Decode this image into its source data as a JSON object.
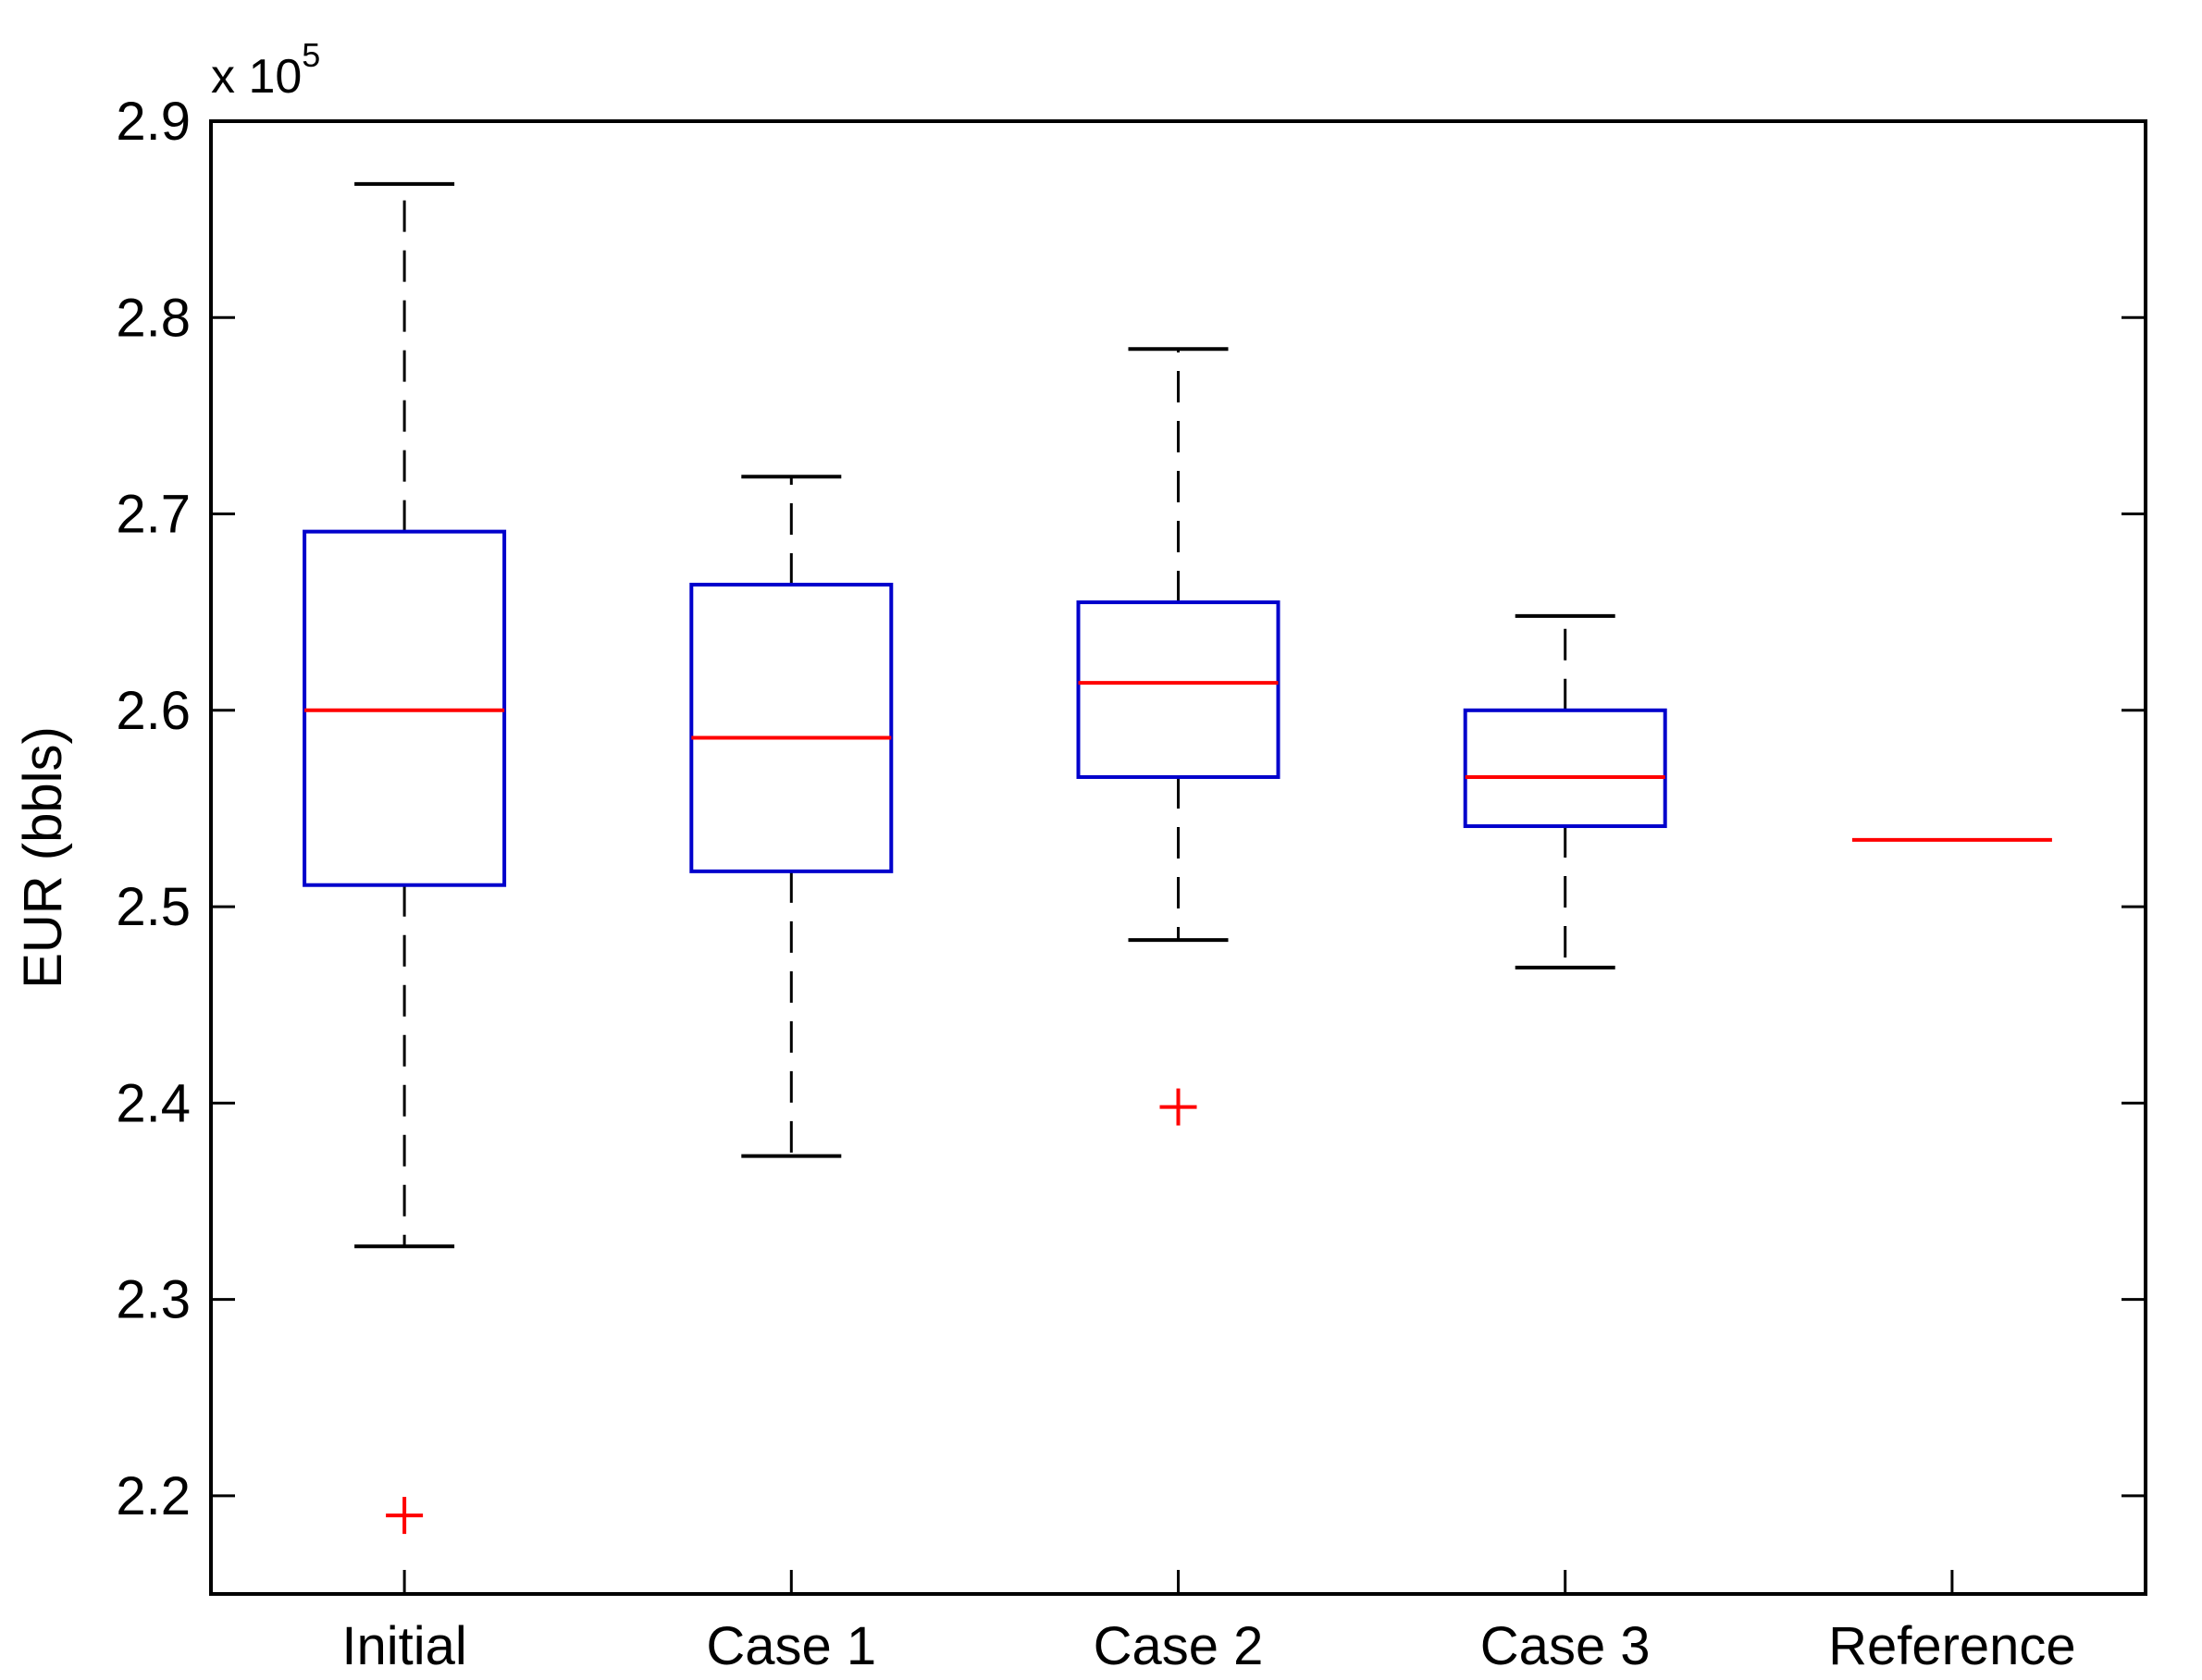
{
  "chart_data": {
    "type": "boxplot",
    "title": "",
    "xlabel": "",
    "ylabel": "EUR (bbls)",
    "exponent_label": "x 10",
    "exponent_power": "5",
    "ylim": [
      2.15,
      2.9
    ],
    "yticks": [
      2.2,
      2.3,
      2.4,
      2.5,
      2.6,
      2.7,
      2.8,
      2.9
    ],
    "ytick_labels": [
      "2.2",
      "2.3",
      "2.4",
      "2.5",
      "2.6",
      "2.7",
      "2.8",
      "2.9"
    ],
    "categories": [
      "Initial",
      "Case 1",
      "Case 2",
      "Case 3",
      "Reference"
    ],
    "boxes": [
      {
        "whisker_low": 2.327,
        "q1": 2.511,
        "median": 2.6,
        "q3": 2.691,
        "whisker_high": 2.868,
        "outliers": [
          2.19
        ]
      },
      {
        "whisker_low": 2.373,
        "q1": 2.518,
        "median": 2.586,
        "q3": 2.664,
        "whisker_high": 2.719,
        "outliers": []
      },
      {
        "whisker_low": 2.483,
        "q1": 2.566,
        "median": 2.614,
        "q3": 2.655,
        "whisker_high": 2.784,
        "outliers": [
          2.398
        ]
      },
      {
        "whisker_low": 2.469,
        "q1": 2.541,
        "median": 2.566,
        "q3": 2.6,
        "whisker_high": 2.648,
        "outliers": []
      },
      {
        "whisker_low": 2.534,
        "q1": 2.534,
        "median": 2.534,
        "q3": 2.534,
        "whisker_high": 2.534,
        "outliers": []
      }
    ],
    "colors": {
      "box": "#0000cc",
      "median": "#ff0000",
      "whisker": "#000000",
      "outlier": "#ff0000"
    },
    "grid": false,
    "legend": "none"
  }
}
